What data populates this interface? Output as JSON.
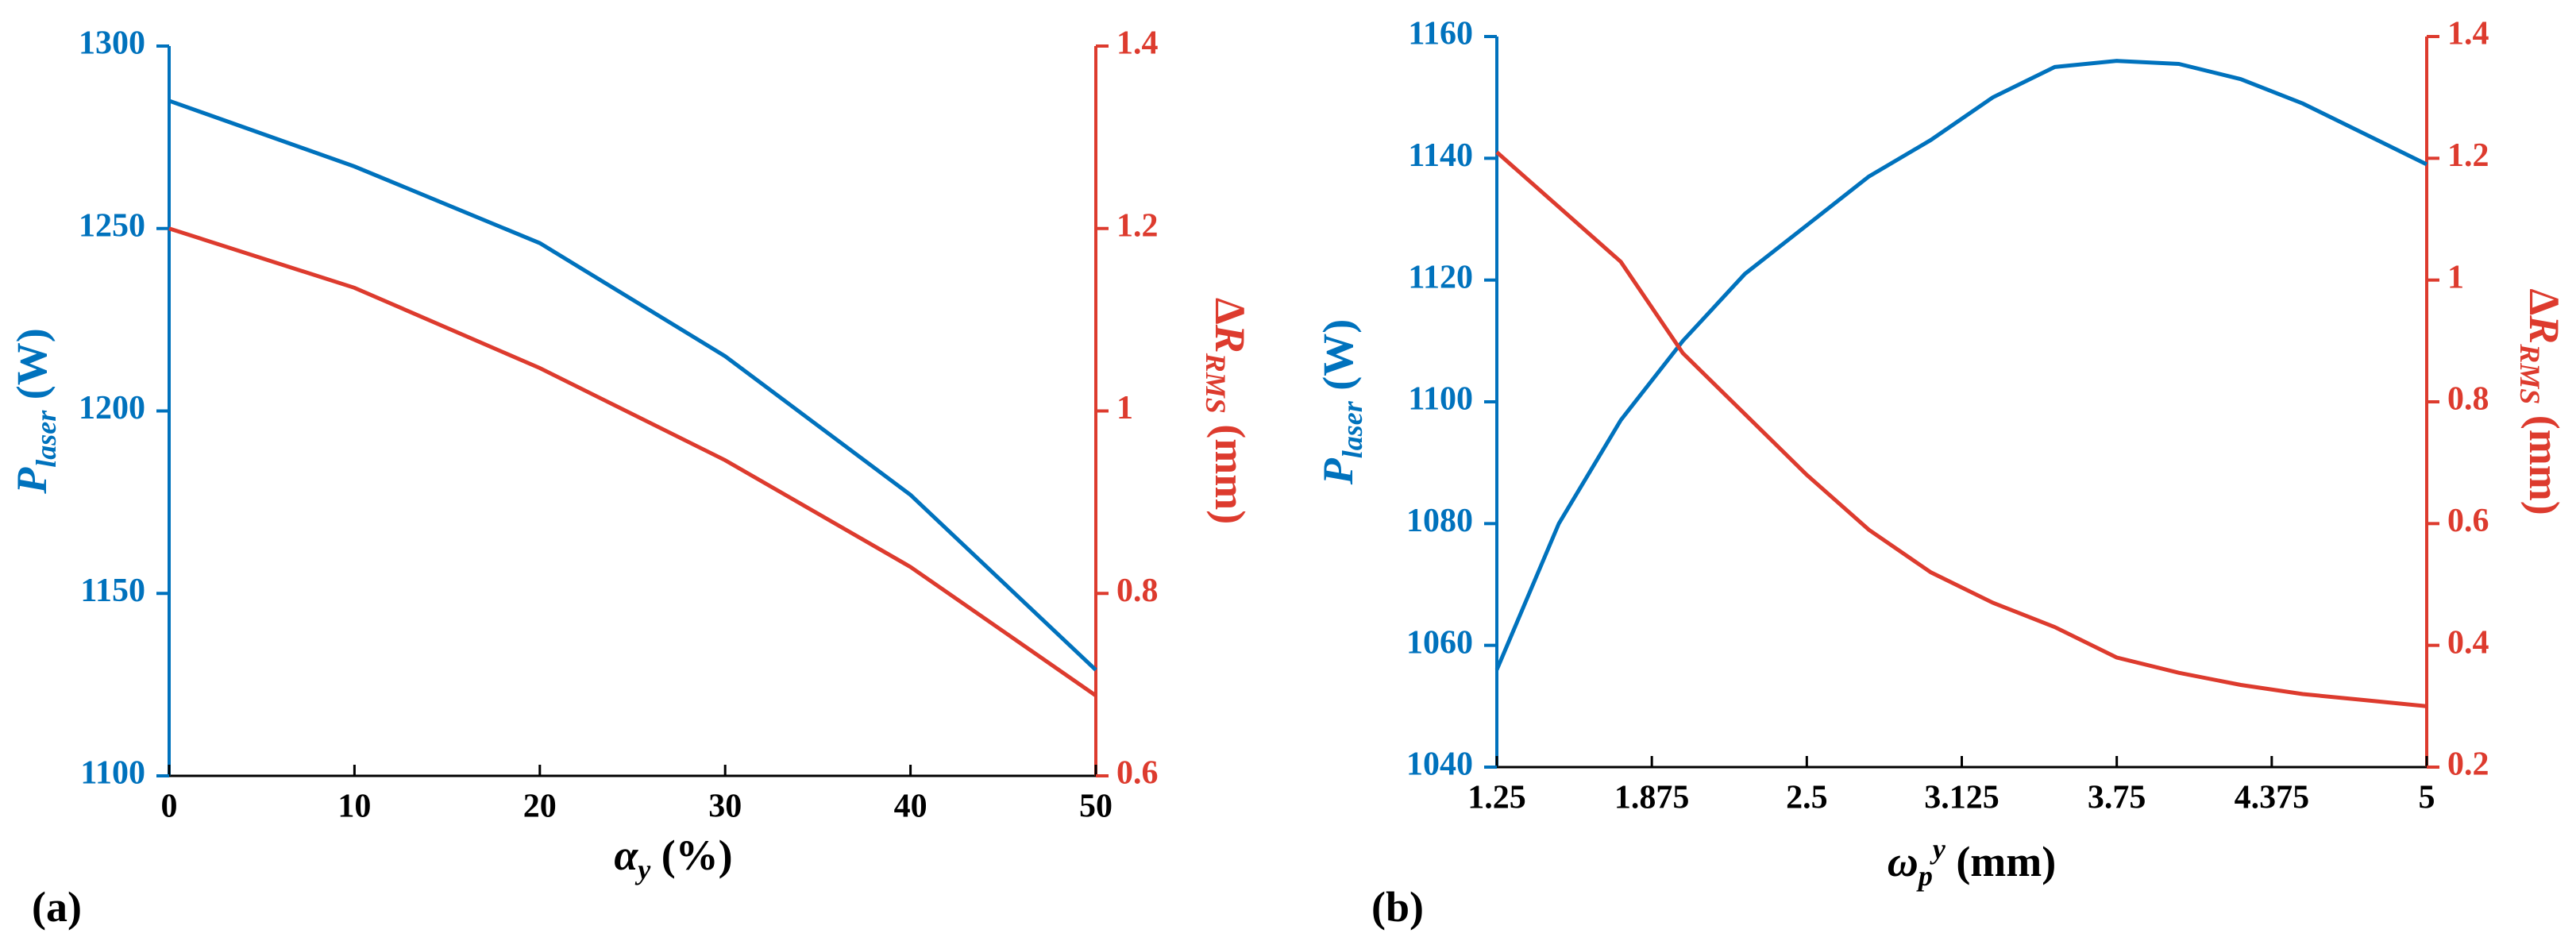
{
  "chart_data": [
    {
      "type": "line",
      "panel": "(a)",
      "xlabel": [
        {
          "text": "α",
          "style": "italic"
        },
        {
          "text": "y",
          "style": "sub"
        },
        {
          "text": " (%)",
          "style": "plain"
        }
      ],
      "ylabel": [
        {
          "text": "P",
          "style": "italic"
        },
        {
          "text": "laser",
          "style": "sub"
        },
        {
          "text": " (W)",
          "style": "plain"
        }
      ],
      "y2label": [
        {
          "text": "Δ",
          "style": "plain"
        },
        {
          "text": "R",
          "style": "italic"
        },
        {
          "text": "RMS",
          "style": "sub"
        },
        {
          "text": " (mm)",
          "style": "plain"
        }
      ],
      "x": [
        0,
        10,
        20,
        30,
        40,
        50
      ],
      "xlim": [
        0,
        50
      ],
      "xticks": [
        0,
        10,
        20,
        30,
        40,
        50
      ],
      "ylim": [
        1100,
        1300
      ],
      "yticks": [
        1100,
        1150,
        1200,
        1250,
        1300
      ],
      "y2lim": [
        0.6,
        1.4
      ],
      "y2ticks": [
        0.6,
        0.8,
        1,
        1.2,
        1.4
      ],
      "series": [
        {
          "color": "#0072bd",
          "values": [
            1285,
            1267,
            1246,
            1215,
            1177,
            1129
          ]
        },
        {
          "color": "#dd3b2e",
          "axis": "y2",
          "values": [
            1.2,
            1.135,
            1.047,
            0.946,
            0.829,
            0.688
          ]
        }
      ]
    },
    {
      "type": "line",
      "panel": "(b)",
      "xlabel": [
        {
          "text": "ω",
          "style": "italic"
        },
        {
          "text": "p",
          "style": "sub"
        },
        {
          "text": "y",
          "style": "sup"
        },
        {
          "text": " (mm)",
          "style": "plain"
        }
      ],
      "ylabel": [
        {
          "text": "P",
          "style": "italic"
        },
        {
          "text": "laser",
          "style": "sub"
        },
        {
          "text": " (W)",
          "style": "plain"
        }
      ],
      "y2label": [
        {
          "text": "Δ",
          "style": "plain"
        },
        {
          "text": "R",
          "style": "italic"
        },
        {
          "text": "RMS",
          "style": "sub"
        },
        {
          "text": " (mm)",
          "style": "plain"
        }
      ],
      "x": [
        1.25,
        1.5,
        1.75,
        2,
        2.25,
        2.5,
        2.75,
        3,
        3.25,
        3.5,
        3.75,
        4,
        4.25,
        4.5,
        4.75,
        5
      ],
      "xlim": [
        1.25,
        5
      ],
      "xticks": [
        1.25,
        1.875,
        2.5,
        3.125,
        3.75,
        4.375,
        5
      ],
      "ylim": [
        1040,
        1160
      ],
      "yticks": [
        1040,
        1060,
        1080,
        1100,
        1120,
        1140,
        1160
      ],
      "y2lim": [
        0.2,
        1.4
      ],
      "y2ticks": [
        0.2,
        0.4,
        0.6,
        0.8,
        1,
        1.2,
        1.4
      ],
      "series": [
        {
          "color": "#0072bd",
          "values": [
            1056,
            1080,
            1097,
            1110,
            1121,
            1129,
            1137,
            1143,
            1150,
            1155,
            1156,
            1155.5,
            1153,
            1149,
            1144,
            1139
          ]
        },
        {
          "color": "#dd3b2e",
          "axis": "y2",
          "values": [
            1.21,
            1.12,
            1.03,
            0.88,
            0.78,
            0.68,
            0.59,
            0.52,
            0.47,
            0.43,
            0.38,
            0.355,
            0.335,
            0.32,
            0.31,
            0.3
          ]
        }
      ]
    }
  ]
}
